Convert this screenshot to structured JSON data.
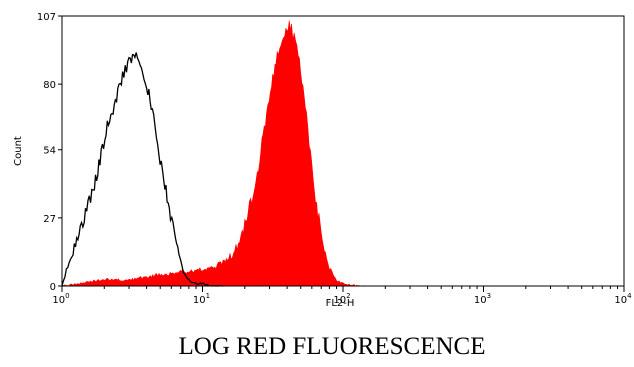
{
  "chart_data": {
    "type": "area",
    "xlabel": "FL2-H",
    "ylabel": "Count",
    "caption": "LOG RED FLUORESCENCE",
    "x_scale": "log",
    "xlim": [
      1,
      10000
    ],
    "ylim": [
      0,
      107
    ],
    "y_ticks": [
      {
        "value": 0,
        "label": "0"
      },
      {
        "value": 27,
        "label": "27"
      },
      {
        "value": 54,
        "label": "54"
      },
      {
        "value": 80,
        "label": "80"
      },
      {
        "value": 107,
        "label": "107"
      }
    ],
    "x_ticks": [
      {
        "value": 1,
        "base": "10",
        "exp": "0"
      },
      {
        "value": 10,
        "base": "10",
        "exp": "1"
      },
      {
        "value": 100,
        "base": "10",
        "exp": "2"
      },
      {
        "value": 1000,
        "base": "10",
        "exp": "3"
      },
      {
        "value": 10000,
        "base": "10",
        "exp": "4"
      }
    ],
    "grid": false,
    "legend": "none",
    "series": [
      {
        "style": "filled",
        "color": "#ff0000",
        "points": [
          [
            1,
            0
          ],
          [
            1.5,
            1.5
          ],
          [
            2,
            2.5
          ],
          [
            3,
            2.5
          ],
          [
            4,
            3.5
          ],
          [
            5,
            4.5
          ],
          [
            6,
            5
          ],
          [
            7,
            5.5
          ],
          [
            8,
            6
          ],
          [
            9,
            6
          ],
          [
            10,
            6.5
          ],
          [
            12,
            7.5
          ],
          [
            14,
            9
          ],
          [
            16,
            12
          ],
          [
            18,
            17
          ],
          [
            20,
            24
          ],
          [
            22,
            33
          ],
          [
            25,
            48
          ],
          [
            28,
            64
          ],
          [
            31,
            79
          ],
          [
            34,
            91
          ],
          [
            37,
            99
          ],
          [
            40,
            103
          ],
          [
            43,
            102
          ],
          [
            46,
            96
          ],
          [
            50,
            85
          ],
          [
            55,
            67
          ],
          [
            60,
            47
          ],
          [
            65,
            32
          ],
          [
            70,
            21
          ],
          [
            75,
            13
          ],
          [
            80,
            7.5
          ],
          [
            85,
            4
          ],
          [
            90,
            2
          ],
          [
            100,
            1
          ],
          [
            120,
            0.3
          ],
          [
            150,
            0
          ]
        ]
      },
      {
        "style": "outline",
        "color": "#000000",
        "points": [
          [
            1,
            0
          ],
          [
            1.05,
            4
          ],
          [
            1.1,
            8
          ],
          [
            1.2,
            14
          ],
          [
            1.35,
            22
          ],
          [
            1.5,
            30
          ],
          [
            1.7,
            40
          ],
          [
            1.9,
            52
          ],
          [
            2.1,
            63
          ],
          [
            2.4,
            74
          ],
          [
            2.7,
            83
          ],
          [
            3.0,
            89
          ],
          [
            3.3,
            91
          ],
          [
            3.6,
            88
          ],
          [
            4.0,
            80
          ],
          [
            4.4,
            69
          ],
          [
            4.8,
            56
          ],
          [
            5.3,
            43
          ],
          [
            5.8,
            31
          ],
          [
            6.3,
            20
          ],
          [
            6.8,
            12
          ],
          [
            7.3,
            6
          ],
          [
            7.8,
            3
          ],
          [
            8.5,
            1.5
          ],
          [
            9.5,
            0.8
          ],
          [
            10,
            1
          ],
          [
            10.5,
            0.4
          ],
          [
            12,
            0
          ],
          [
            14,
            0
          ]
        ]
      }
    ]
  }
}
